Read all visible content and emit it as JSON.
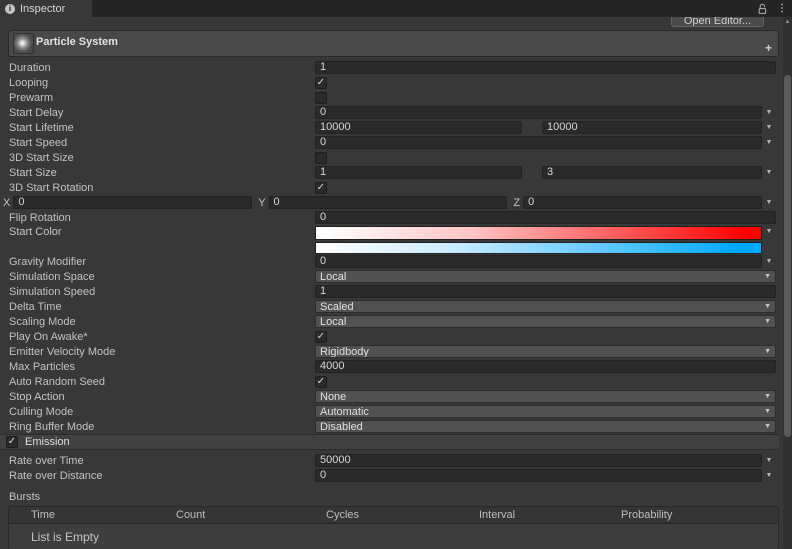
{
  "window": {
    "tab_label": "Inspector",
    "open_editor_label": "Open Editor..."
  },
  "header": {
    "title": "Particle System",
    "plus_label": "+"
  },
  "icons": {
    "info": "i",
    "kebab": "⋮",
    "dropdown_arrow": "▼",
    "scroll_up_arrow": "▲",
    "check": "✓"
  },
  "colors": {
    "gradient_red_end": "#ff0000",
    "gradient_blue_end": "#00a9ff",
    "panel_bg": "#383838",
    "field_bg": "#2a2a2a",
    "dropdown_bg": "#515151"
  },
  "main_rows": [
    {
      "label": "Duration",
      "type": "input",
      "value": "1"
    },
    {
      "label": "Looping",
      "type": "checkbox",
      "checked": true
    },
    {
      "label": "Prewarm",
      "type": "checkbox",
      "checked": false
    },
    {
      "label": "Start Delay",
      "type": "input_arrow",
      "value": "0"
    },
    {
      "label": "Start Lifetime",
      "type": "input2_arrow",
      "values": [
        "10000",
        "10000"
      ]
    },
    {
      "label": "Start Speed",
      "type": "input_arrow",
      "value": "0"
    },
    {
      "label": "3D Start Size",
      "type": "checkbox",
      "checked": false
    },
    {
      "label": "Start Size",
      "type": "input2_arrow",
      "values": [
        "1",
        "3"
      ]
    },
    {
      "label": "3D Start Rotation",
      "type": "checkbox",
      "checked": true
    },
    {
      "label": "",
      "name": "start-rotation-xyz",
      "type": "xyz",
      "fields": [
        {
          "axis": "X",
          "value": "0"
        },
        {
          "axis": "Y",
          "value": "0"
        },
        {
          "axis": "Z",
          "value": "0"
        }
      ]
    },
    {
      "label": "Flip Rotation",
      "type": "input",
      "value": "0"
    },
    {
      "label": "Start Color",
      "type": "gradient",
      "gradients": [
        {
          "stops": [
            "#ffffff 1%",
            "#ffc4c4 35%",
            "#ff0000 97%"
          ]
        },
        {
          "stops": [
            "#ffffff 1%",
            "#c4eaff 33%",
            "#00a9ff 95%"
          ]
        }
      ]
    },
    {
      "label": "Gravity Modifier",
      "type": "input_arrow",
      "value": "0"
    },
    {
      "label": "Simulation Space",
      "type": "dropdown",
      "value": "Local"
    },
    {
      "label": "Simulation Speed",
      "type": "input",
      "value": "1"
    },
    {
      "label": "Delta Time",
      "type": "dropdown",
      "value": "Scaled"
    },
    {
      "label": "Scaling Mode",
      "type": "dropdown",
      "value": "Local"
    },
    {
      "label": "Play On Awake*",
      "type": "checkbox",
      "checked": true
    },
    {
      "label": "Emitter Velocity Mode",
      "type": "dropdown",
      "value": "Rigidbody"
    },
    {
      "label": "Max Particles",
      "type": "input",
      "value": "4000"
    },
    {
      "label": "Auto Random Seed",
      "type": "checkbox",
      "checked": true
    },
    {
      "label": "Stop Action",
      "type": "dropdown",
      "value": "None"
    },
    {
      "label": "Culling Mode",
      "type": "dropdown",
      "value": "Automatic"
    },
    {
      "label": "Ring Buffer Mode",
      "type": "dropdown",
      "value": "Disabled"
    }
  ],
  "emission": {
    "label": "Emission",
    "enabled": true
  },
  "emission_rows": [
    {
      "label": "Rate over Time",
      "type": "input_arrow",
      "value": "50000"
    },
    {
      "label": "Rate over Distance",
      "type": "input_arrow",
      "value": "0"
    }
  ],
  "bursts": {
    "label": "Bursts",
    "columns": [
      "Time",
      "Count",
      "Cycles",
      "Interval",
      "Probability"
    ],
    "empty_text": "List is Empty"
  }
}
